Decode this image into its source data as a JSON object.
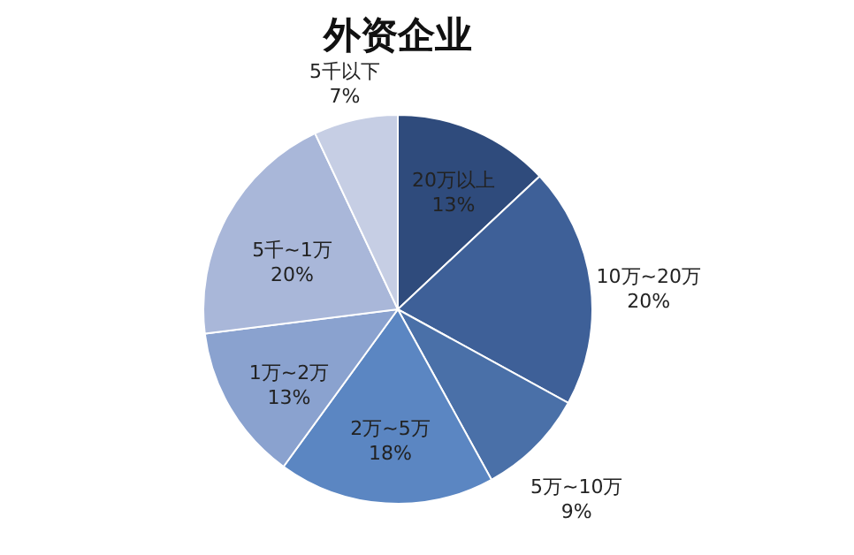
{
  "chart_data": {
    "type": "pie",
    "title": "外资企业",
    "categories": [
      "20万以上",
      "10万~20万",
      "5万~10万",
      "2万~5万",
      "1万~2万",
      "5千~1万",
      "5千以下"
    ],
    "values": [
      13,
      20,
      9,
      18,
      13,
      20,
      7
    ],
    "value_labels": [
      "13%",
      "20%",
      "9%",
      "18%",
      "13%",
      "20%",
      "7%"
    ],
    "colors": [
      "#2f4b7c",
      "#3e6098",
      "#4a70a8",
      "#5b86c2",
      "#8aa2cf",
      "#a9b7d9",
      "#c6cee4"
    ],
    "legend": false
  }
}
